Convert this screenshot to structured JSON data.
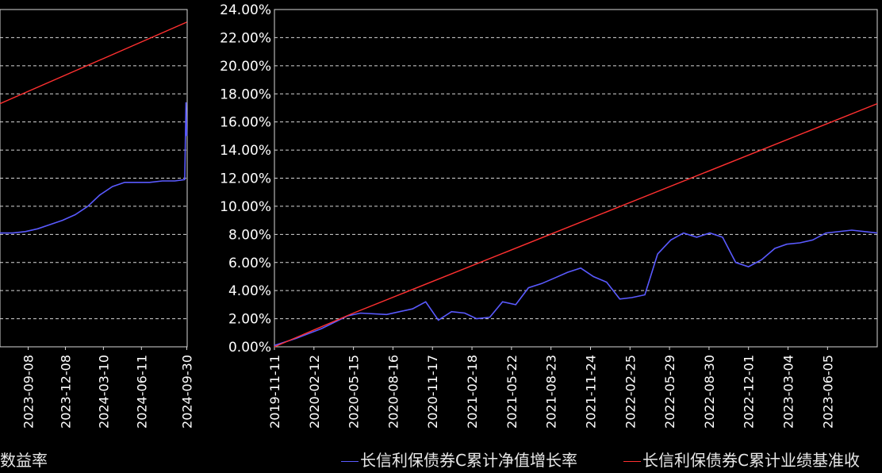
{
  "colors": {
    "background": "#000000",
    "grid": "#d8d8d8",
    "nav_series": "#5a5aff",
    "benchmark_series": "#ff3030",
    "text": "#ffffff"
  },
  "legend": {
    "left_fragment": "数益率",
    "nav_label": "长信利保债券C累计净值增长率",
    "benchmark_label": "长信利保债券C累计业绩基准收"
  },
  "chart_data": [
    {
      "type": "line",
      "panel": "left-partial",
      "xlabel": "",
      "ylabel": "",
      "x_ticks": [
        "2023-09-08",
        "2023-12-08",
        "2024-03-10",
        "2024-06-11",
        "2024-09-30"
      ],
      "ylim": [
        0.0,
        24.0
      ],
      "series": [
        {
          "key": "nav",
          "x": [
            "2023-07-01",
            "2023-08-01",
            "2023-09-01",
            "2023-10-01",
            "2023-11-01",
            "2023-12-01",
            "2024-01-01",
            "2024-02-01",
            "2024-03-01",
            "2024-04-01",
            "2024-05-01",
            "2024-06-01",
            "2024-07-01",
            "2024-08-01",
            "2024-09-01",
            "2024-09-25",
            "2024-09-28",
            "2024-09-30"
          ],
          "values": [
            8.1,
            8.1,
            8.2,
            8.4,
            8.7,
            9.0,
            9.4,
            10.0,
            10.8,
            11.4,
            11.7,
            11.7,
            11.7,
            11.8,
            11.8,
            11.9,
            17.4,
            15.0
          ]
        },
        {
          "key": "benchmark",
          "x": [
            "2023-07-01",
            "2024-09-30"
          ],
          "values": [
            17.3,
            23.1
          ]
        }
      ]
    },
    {
      "type": "line",
      "panel": "main",
      "xlabel": "",
      "ylabel": "",
      "y_ticks": [
        "0.00%",
        "2.00%",
        "4.00%",
        "6.00%",
        "8.00%",
        "10.00%",
        "12.00%",
        "14.00%",
        "16.00%",
        "18.00%",
        "20.00%",
        "22.00%",
        "24.00%"
      ],
      "x_ticks": [
        "2019-11-11",
        "2020-02-12",
        "2020-05-15",
        "2020-08-16",
        "2020-11-17",
        "2021-02-18",
        "2021-05-22",
        "2021-08-23",
        "2021-11-24",
        "2022-02-25",
        "2022-05-29",
        "2022-08-30",
        "2022-12-01",
        "2023-03-04",
        "2023-06-05"
      ],
      "ylim": [
        0.0,
        24.0
      ],
      "grid": true,
      "series": [
        {
          "key": "nav",
          "x": [
            "2019-11-11",
            "2020-01-01",
            "2020-03-01",
            "2020-05-01",
            "2020-06-01",
            "2020-08-01",
            "2020-10-01",
            "2020-11-01",
            "2020-12-01",
            "2021-01-01",
            "2021-02-01",
            "2021-03-01",
            "2021-04-01",
            "2021-05-01",
            "2021-06-01",
            "2021-07-01",
            "2021-08-01",
            "2021-09-01",
            "2021-10-01",
            "2021-11-01",
            "2021-12-01",
            "2022-01-01",
            "2022-02-01",
            "2022-03-01",
            "2022-04-01",
            "2022-05-01",
            "2022-06-01",
            "2022-07-01",
            "2022-08-01",
            "2022-09-01",
            "2022-10-01",
            "2022-11-01",
            "2022-12-01",
            "2023-01-01",
            "2023-02-01",
            "2023-03-01",
            "2023-04-01",
            "2023-05-01",
            "2023-06-01",
            "2023-08-01",
            "2023-09-30"
          ],
          "values": [
            0.1,
            0.6,
            1.3,
            2.2,
            2.4,
            2.3,
            2.7,
            3.2,
            1.9,
            2.5,
            2.4,
            2.0,
            2.1,
            3.2,
            3.0,
            4.2,
            4.5,
            4.9,
            5.3,
            5.6,
            5.0,
            4.6,
            3.4,
            3.5,
            3.7,
            6.6,
            7.6,
            8.1,
            7.8,
            8.1,
            7.8,
            6.0,
            5.7,
            6.2,
            7.0,
            7.3,
            7.4,
            7.6,
            8.1,
            8.3,
            8.1
          ]
        },
        {
          "key": "benchmark",
          "x": [
            "2019-11-11",
            "2020-05-15",
            "2023-09-30"
          ],
          "values": [
            0.0,
            2.4,
            17.3
          ]
        }
      ]
    }
  ]
}
